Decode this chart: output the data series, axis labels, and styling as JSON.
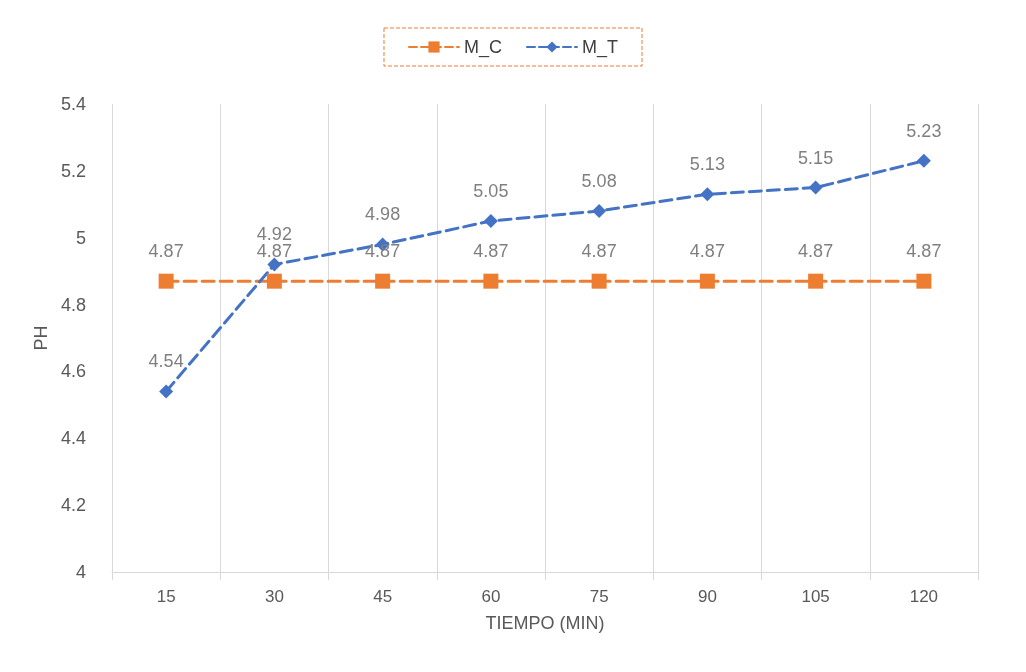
{
  "chart_data": {
    "type": "line",
    "xlabel": "TIEMPO (MIN)",
    "ylabel": "PH",
    "categories": [
      "15",
      "30",
      "45",
      "60",
      "75",
      "90",
      "105",
      "120"
    ],
    "series": [
      {
        "name": "M_C",
        "color": "#ed7d31",
        "marker": "square",
        "values": [
          4.87,
          4.87,
          4.87,
          4.87,
          4.87,
          4.87,
          4.87,
          4.87
        ]
      },
      {
        "name": "M_T",
        "color": "#4472c4",
        "marker": "diamond",
        "values": [
          4.54,
          4.92,
          4.98,
          5.05,
          5.08,
          5.13,
          5.15,
          5.23
        ]
      }
    ],
    "ylim": [
      4,
      5.4
    ],
    "yticks": [
      4,
      4.2,
      4.4,
      4.6,
      4.8,
      5,
      5.2,
      5.4
    ],
    "grid": "x",
    "legend": "top",
    "line_style": "dashed",
    "data_labels": true
  }
}
